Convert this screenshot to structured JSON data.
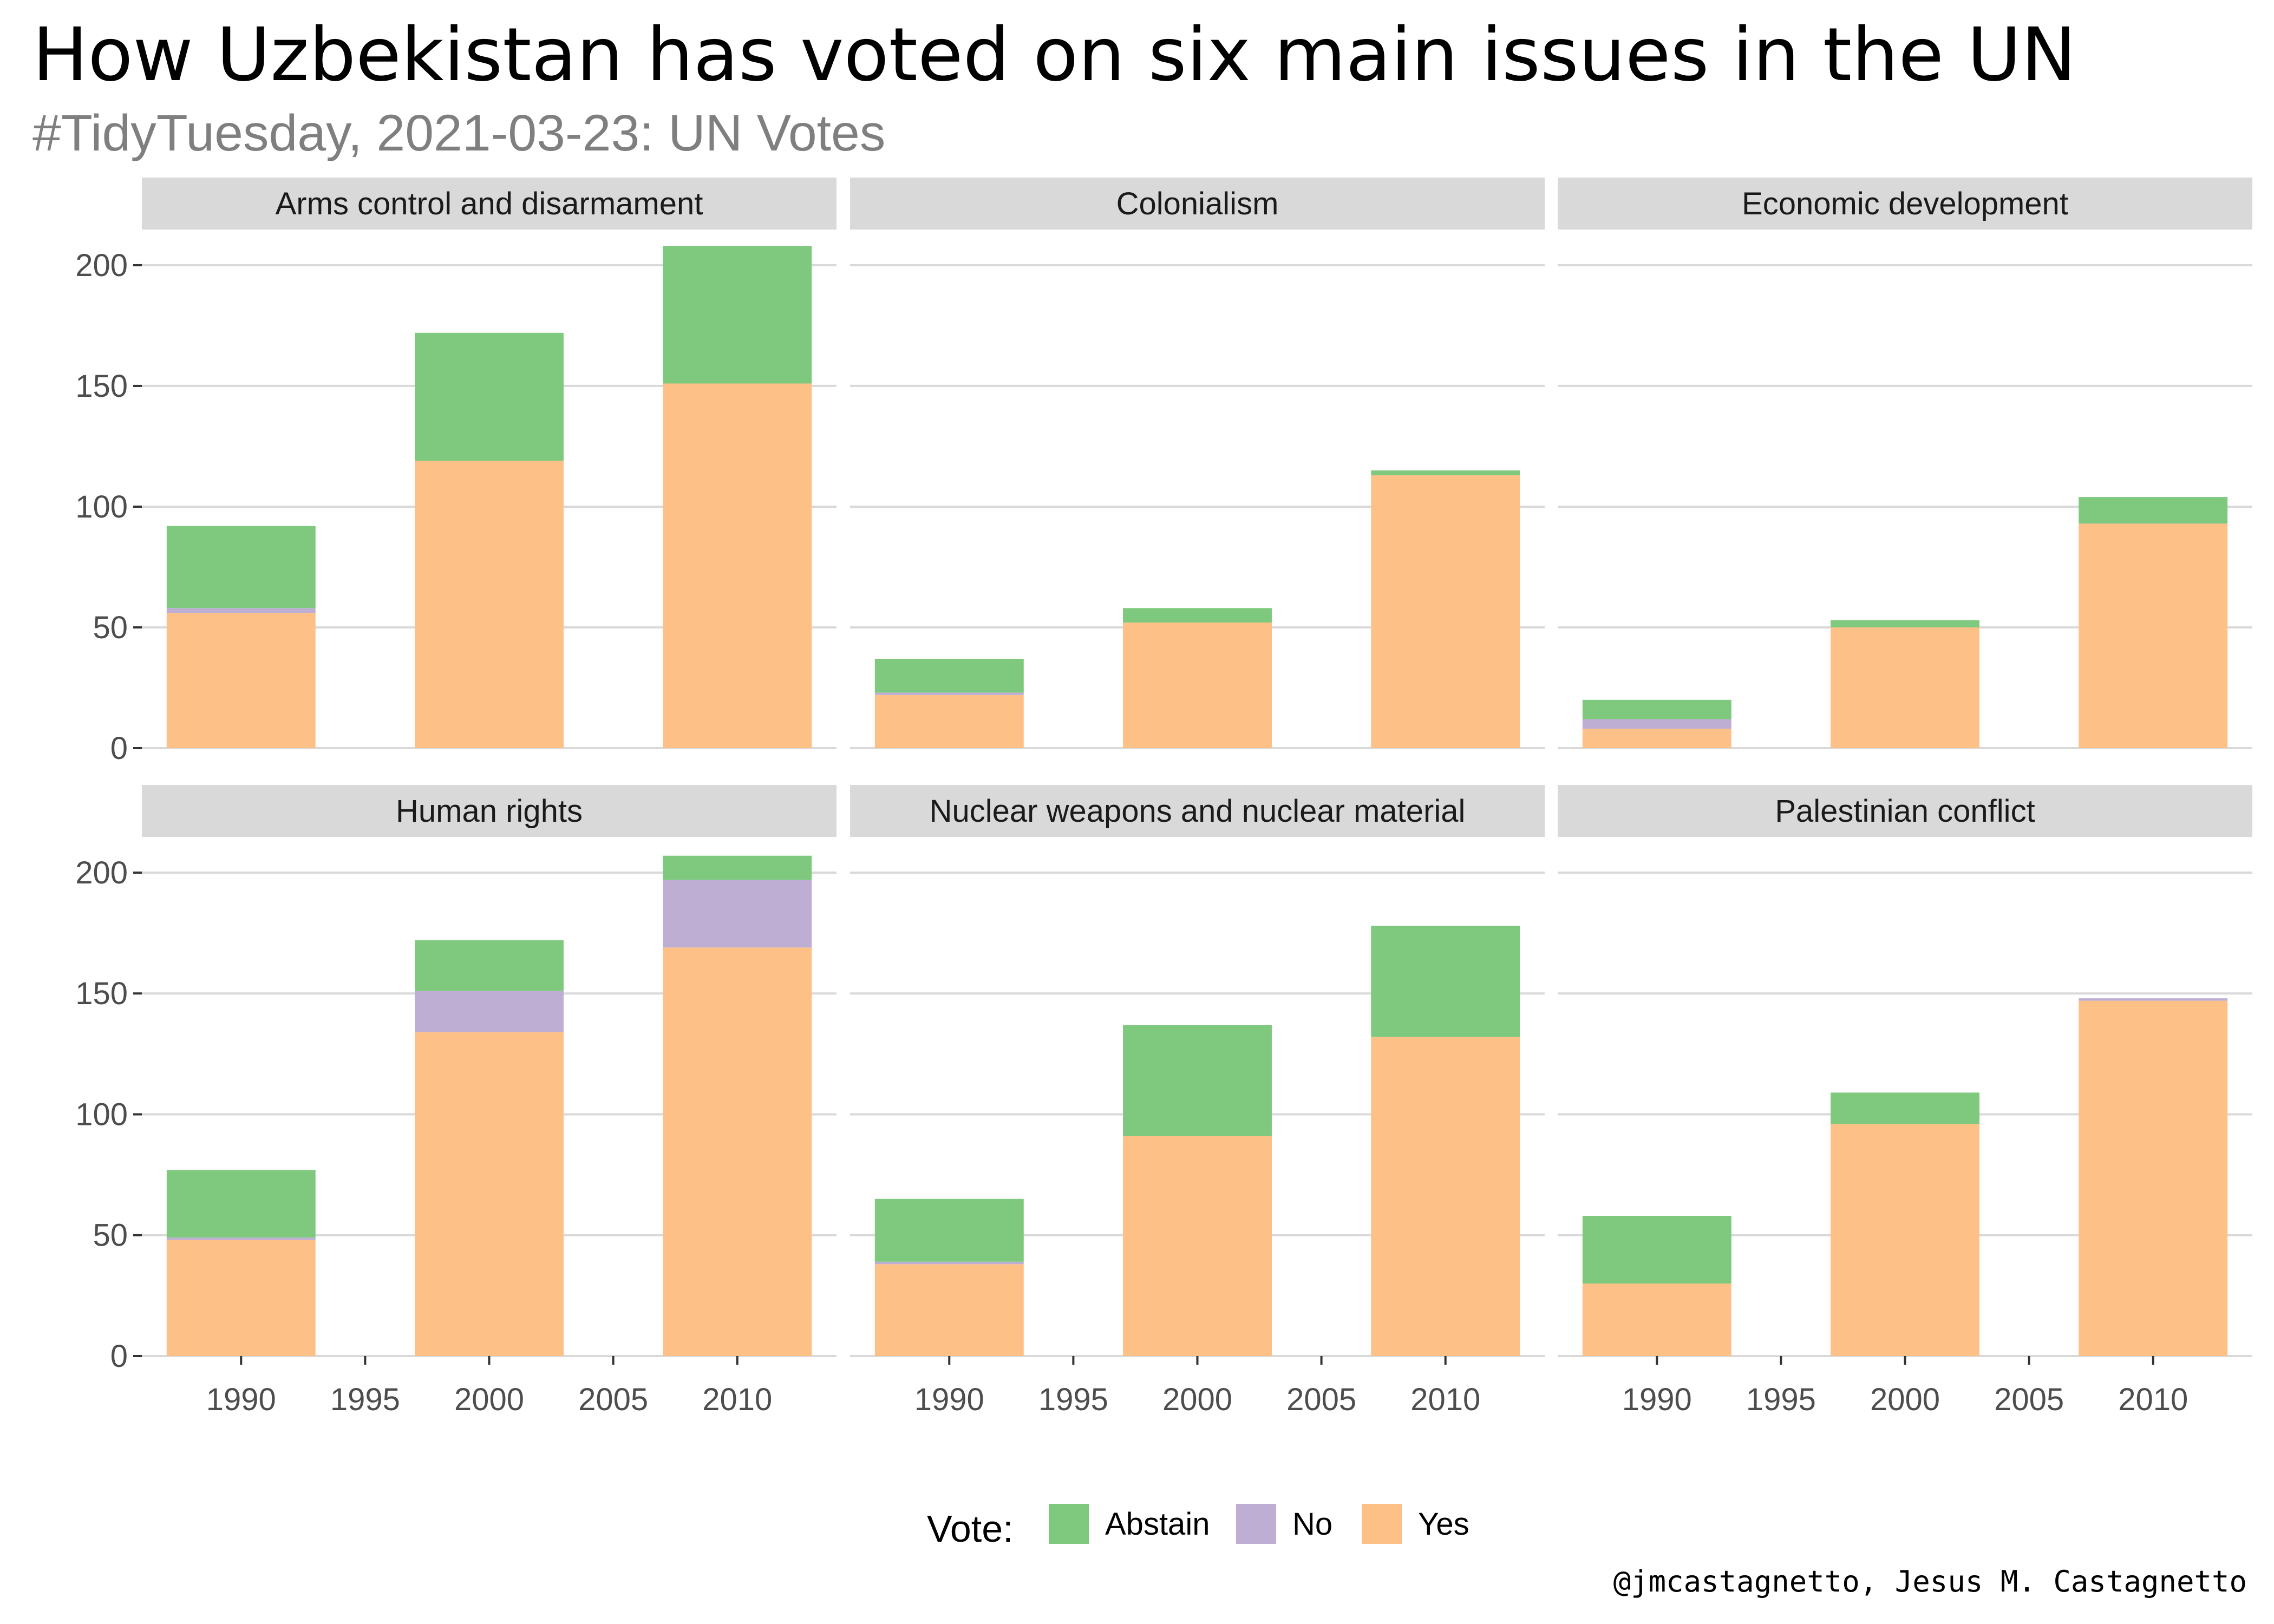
{
  "title": "How Uzbekistan has voted on six main issues in the UN",
  "subtitle": "#TidyTuesday, 2021-03-23: UN Votes",
  "caption": "@jmcastagnetto, Jesus M. Castagnetto",
  "legend": {
    "title": "Vote:",
    "placement": "bottom",
    "items": [
      {
        "label": "Abstain",
        "color": "#7fc97f"
      },
      {
        "label": "No",
        "color": "#beaed4"
      },
      {
        "label": "Yes",
        "color": "#fdc086"
      }
    ]
  },
  "colors": {
    "Yes": "#fdc086",
    "No": "#beaed4",
    "Abstain": "#7fc97f",
    "strip": "#d9d9d9",
    "grid": "#d9d9d9"
  },
  "chart_data": {
    "type": "bar",
    "stacked": true,
    "facets_layout": "2x3",
    "x": [
      1990,
      2000,
      2010
    ],
    "x_ticks": [
      1990,
      1995,
      2000,
      2005,
      2010
    ],
    "xlim": [
      1986,
      2014
    ],
    "y_ticks": [
      0,
      50,
      100,
      150,
      200
    ],
    "ylim": [
      0,
      215
    ],
    "grid": true,
    "stack_order": [
      "Yes",
      "No",
      "Abstain"
    ],
    "facets": [
      {
        "name": "Arms control and disarmament",
        "series": [
          {
            "name": "Yes",
            "values": [
              56,
              119,
              151
            ]
          },
          {
            "name": "No",
            "values": [
              2,
              0,
              0
            ]
          },
          {
            "name": "Abstain",
            "values": [
              34,
              53,
              57
            ]
          }
        ]
      },
      {
        "name": "Colonialism",
        "series": [
          {
            "name": "Yes",
            "values": [
              22,
              52,
              113
            ]
          },
          {
            "name": "No",
            "values": [
              1,
              0,
              0
            ]
          },
          {
            "name": "Abstain",
            "values": [
              14,
              6,
              2
            ]
          }
        ]
      },
      {
        "name": "Economic development",
        "series": [
          {
            "name": "Yes",
            "values": [
              8,
              50,
              93
            ]
          },
          {
            "name": "No",
            "values": [
              4,
              0,
              0
            ]
          },
          {
            "name": "Abstain",
            "values": [
              8,
              3,
              11
            ]
          }
        ]
      },
      {
        "name": "Human rights",
        "series": [
          {
            "name": "Yes",
            "values": [
              48,
              134,
              169
            ]
          },
          {
            "name": "No",
            "values": [
              1,
              17,
              28
            ]
          },
          {
            "name": "Abstain",
            "values": [
              28,
              21,
              10
            ]
          }
        ]
      },
      {
        "name": "Nuclear weapons and nuclear material",
        "series": [
          {
            "name": "Yes",
            "values": [
              38,
              91,
              132
            ]
          },
          {
            "name": "No",
            "values": [
              1,
              0,
              0
            ]
          },
          {
            "name": "Abstain",
            "values": [
              26,
              46,
              46
            ]
          }
        ]
      },
      {
        "name": "Palestinian conflict",
        "series": [
          {
            "name": "Yes",
            "values": [
              30,
              96,
              147
            ]
          },
          {
            "name": "No",
            "values": [
              0,
              0,
              1
            ]
          },
          {
            "name": "Abstain",
            "values": [
              28,
              13,
              0
            ]
          }
        ]
      }
    ]
  }
}
